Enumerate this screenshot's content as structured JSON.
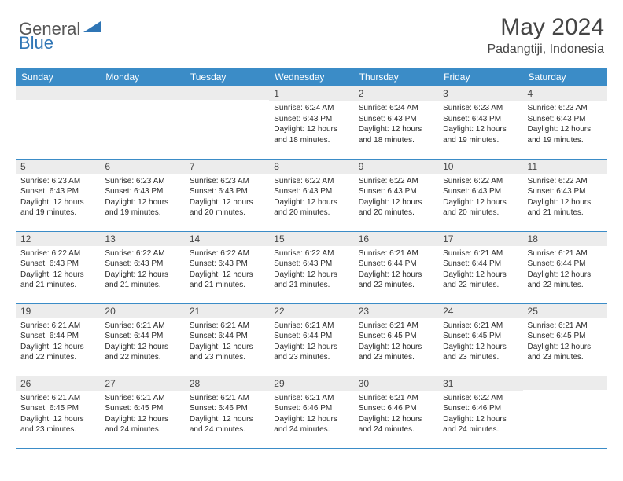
{
  "brand": {
    "part1": "General",
    "part2": "Blue",
    "triangle_color": "#2f75b5"
  },
  "title": "May 2024",
  "location": "Padangtiji, Indonesia",
  "header_bg": "#3b8cc7",
  "header_fg": "#ffffff",
  "daynum_bg": "#ececec",
  "border_color": "#3b8cc7",
  "daynames": [
    "Sunday",
    "Monday",
    "Tuesday",
    "Wednesday",
    "Thursday",
    "Friday",
    "Saturday"
  ],
  "weeks": [
    [
      {
        "n": "",
        "lines": []
      },
      {
        "n": "",
        "lines": []
      },
      {
        "n": "",
        "lines": []
      },
      {
        "n": "1",
        "lines": [
          "Sunrise: 6:24 AM",
          "Sunset: 6:43 PM",
          "Daylight: 12 hours",
          "and 18 minutes."
        ]
      },
      {
        "n": "2",
        "lines": [
          "Sunrise: 6:24 AM",
          "Sunset: 6:43 PM",
          "Daylight: 12 hours",
          "and 18 minutes."
        ]
      },
      {
        "n": "3",
        "lines": [
          "Sunrise: 6:23 AM",
          "Sunset: 6:43 PM",
          "Daylight: 12 hours",
          "and 19 minutes."
        ]
      },
      {
        "n": "4",
        "lines": [
          "Sunrise: 6:23 AM",
          "Sunset: 6:43 PM",
          "Daylight: 12 hours",
          "and 19 minutes."
        ]
      }
    ],
    [
      {
        "n": "5",
        "lines": [
          "Sunrise: 6:23 AM",
          "Sunset: 6:43 PM",
          "Daylight: 12 hours",
          "and 19 minutes."
        ]
      },
      {
        "n": "6",
        "lines": [
          "Sunrise: 6:23 AM",
          "Sunset: 6:43 PM",
          "Daylight: 12 hours",
          "and 19 minutes."
        ]
      },
      {
        "n": "7",
        "lines": [
          "Sunrise: 6:23 AM",
          "Sunset: 6:43 PM",
          "Daylight: 12 hours",
          "and 20 minutes."
        ]
      },
      {
        "n": "8",
        "lines": [
          "Sunrise: 6:22 AM",
          "Sunset: 6:43 PM",
          "Daylight: 12 hours",
          "and 20 minutes."
        ]
      },
      {
        "n": "9",
        "lines": [
          "Sunrise: 6:22 AM",
          "Sunset: 6:43 PM",
          "Daylight: 12 hours",
          "and 20 minutes."
        ]
      },
      {
        "n": "10",
        "lines": [
          "Sunrise: 6:22 AM",
          "Sunset: 6:43 PM",
          "Daylight: 12 hours",
          "and 20 minutes."
        ]
      },
      {
        "n": "11",
        "lines": [
          "Sunrise: 6:22 AM",
          "Sunset: 6:43 PM",
          "Daylight: 12 hours",
          "and 21 minutes."
        ]
      }
    ],
    [
      {
        "n": "12",
        "lines": [
          "Sunrise: 6:22 AM",
          "Sunset: 6:43 PM",
          "Daylight: 12 hours",
          "and 21 minutes."
        ]
      },
      {
        "n": "13",
        "lines": [
          "Sunrise: 6:22 AM",
          "Sunset: 6:43 PM",
          "Daylight: 12 hours",
          "and 21 minutes."
        ]
      },
      {
        "n": "14",
        "lines": [
          "Sunrise: 6:22 AM",
          "Sunset: 6:43 PM",
          "Daylight: 12 hours",
          "and 21 minutes."
        ]
      },
      {
        "n": "15",
        "lines": [
          "Sunrise: 6:22 AM",
          "Sunset: 6:43 PM",
          "Daylight: 12 hours",
          "and 21 minutes."
        ]
      },
      {
        "n": "16",
        "lines": [
          "Sunrise: 6:21 AM",
          "Sunset: 6:44 PM",
          "Daylight: 12 hours",
          "and 22 minutes."
        ]
      },
      {
        "n": "17",
        "lines": [
          "Sunrise: 6:21 AM",
          "Sunset: 6:44 PM",
          "Daylight: 12 hours",
          "and 22 minutes."
        ]
      },
      {
        "n": "18",
        "lines": [
          "Sunrise: 6:21 AM",
          "Sunset: 6:44 PM",
          "Daylight: 12 hours",
          "and 22 minutes."
        ]
      }
    ],
    [
      {
        "n": "19",
        "lines": [
          "Sunrise: 6:21 AM",
          "Sunset: 6:44 PM",
          "Daylight: 12 hours",
          "and 22 minutes."
        ]
      },
      {
        "n": "20",
        "lines": [
          "Sunrise: 6:21 AM",
          "Sunset: 6:44 PM",
          "Daylight: 12 hours",
          "and 22 minutes."
        ]
      },
      {
        "n": "21",
        "lines": [
          "Sunrise: 6:21 AM",
          "Sunset: 6:44 PM",
          "Daylight: 12 hours",
          "and 23 minutes."
        ]
      },
      {
        "n": "22",
        "lines": [
          "Sunrise: 6:21 AM",
          "Sunset: 6:44 PM",
          "Daylight: 12 hours",
          "and 23 minutes."
        ]
      },
      {
        "n": "23",
        "lines": [
          "Sunrise: 6:21 AM",
          "Sunset: 6:45 PM",
          "Daylight: 12 hours",
          "and 23 minutes."
        ]
      },
      {
        "n": "24",
        "lines": [
          "Sunrise: 6:21 AM",
          "Sunset: 6:45 PM",
          "Daylight: 12 hours",
          "and 23 minutes."
        ]
      },
      {
        "n": "25",
        "lines": [
          "Sunrise: 6:21 AM",
          "Sunset: 6:45 PM",
          "Daylight: 12 hours",
          "and 23 minutes."
        ]
      }
    ],
    [
      {
        "n": "26",
        "lines": [
          "Sunrise: 6:21 AM",
          "Sunset: 6:45 PM",
          "Daylight: 12 hours",
          "and 23 minutes."
        ]
      },
      {
        "n": "27",
        "lines": [
          "Sunrise: 6:21 AM",
          "Sunset: 6:45 PM",
          "Daylight: 12 hours",
          "and 24 minutes."
        ]
      },
      {
        "n": "28",
        "lines": [
          "Sunrise: 6:21 AM",
          "Sunset: 6:46 PM",
          "Daylight: 12 hours",
          "and 24 minutes."
        ]
      },
      {
        "n": "29",
        "lines": [
          "Sunrise: 6:21 AM",
          "Sunset: 6:46 PM",
          "Daylight: 12 hours",
          "and 24 minutes."
        ]
      },
      {
        "n": "30",
        "lines": [
          "Sunrise: 6:21 AM",
          "Sunset: 6:46 PM",
          "Daylight: 12 hours",
          "and 24 minutes."
        ]
      },
      {
        "n": "31",
        "lines": [
          "Sunrise: 6:22 AM",
          "Sunset: 6:46 PM",
          "Daylight: 12 hours",
          "and 24 minutes."
        ]
      },
      {
        "n": "",
        "lines": []
      }
    ]
  ]
}
